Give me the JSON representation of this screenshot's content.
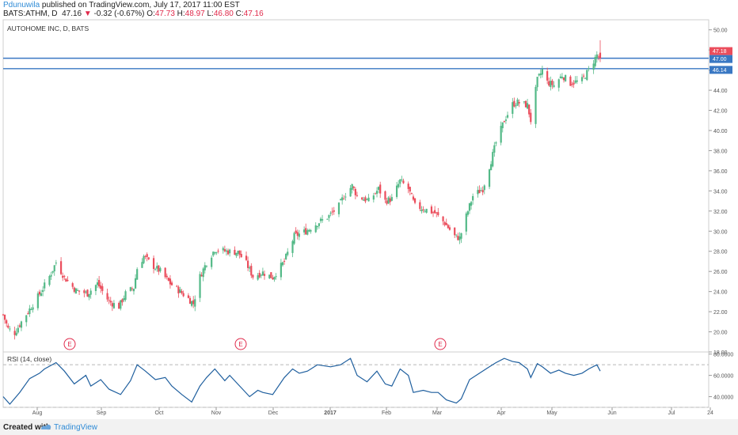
{
  "header": {
    "author": "Pdunuwila",
    "published": " published on TradingView.com, July 17, 2017 11:00 EST",
    "symbol": "BATS:ATHM, D",
    "last": "47.16",
    "arrow": "▼",
    "change": "-0.32 (-0.67%)",
    "o_label": "O:",
    "o_val": "47.73",
    "h_label": "H:",
    "h_val": "48.97",
    "l_label": "L:",
    "l_val": "46.80",
    "c_label": "C:",
    "c_val": "47.16"
  },
  "footer": {
    "created_with": "Created with",
    "brand": "TradingView"
  },
  "colors": {
    "up": "#53b987",
    "down": "#eb4d5c",
    "rsi_line": "#1f5f9e",
    "hline": "#3a78c3",
    "event": "#e0294a"
  },
  "chart_data": [
    {
      "type": "candlestick",
      "title": "AUTOHOME INC, D, BATS",
      "ylim": [
        18,
        51
      ],
      "y_ticks": [
        "18.00",
        "20.00",
        "22.00",
        "24.00",
        "26.00",
        "28.00",
        "30.00",
        "32.00",
        "34.00",
        "36.00",
        "38.00",
        "40.00",
        "42.00",
        "44.00",
        "46.00",
        "48.00",
        "50.00"
      ],
      "x_ticks": [
        "Aug",
        "Sep",
        "Oct",
        "Nov",
        "Dec",
        "2017",
        "Feb",
        "Mar",
        "Apr",
        "May",
        "Jun",
        "Jul",
        "24"
      ],
      "horizontal_lines": [
        47.18,
        46.14
      ],
      "price_labels": [
        {
          "text": "47.18",
          "value": 47.18,
          "color": "#eb4d5c"
        },
        {
          "text": "47.00",
          "value": 47.0,
          "color": "#3a78c3"
        },
        {
          "text": "46.14",
          "value": 46.14,
          "color": "#3a78c3"
        }
      ],
      "event_markers": [
        {
          "label": "E",
          "date": "Aug"
        },
        {
          "label": "E",
          "date": "Nov"
        },
        {
          "label": "E",
          "date": "Mar"
        }
      ],
      "anchor_closes": [
        [
          "2016-07-18",
          21.7
        ],
        [
          "2016-07-21",
          20.3
        ],
        [
          "2016-07-25",
          19.9
        ],
        [
          "2016-07-29",
          21.0
        ],
        [
          "2016-08-04",
          22.5
        ],
        [
          "2016-08-10",
          24.0
        ],
        [
          "2016-08-15",
          25.5
        ],
        [
          "2016-08-19",
          26.9
        ],
        [
          "2016-08-24",
          25.4
        ],
        [
          "2016-08-31",
          24.1
        ],
        [
          "2016-09-07",
          23.8
        ],
        [
          "2016-09-13",
          24.8
        ],
        [
          "2016-09-20",
          23.0
        ],
        [
          "2016-09-26",
          22.5
        ],
        [
          "2016-09-30",
          23.8
        ],
        [
          "2016-10-05",
          24.4
        ],
        [
          "2016-10-07",
          26.3
        ],
        [
          "2016-10-11",
          27.5
        ],
        [
          "2016-10-17",
          26.5
        ],
        [
          "2016-10-21",
          26.0
        ],
        [
          "2016-10-27",
          24.8
        ],
        [
          "2016-11-02",
          24.0
        ],
        [
          "2016-11-07",
          23.3
        ],
        [
          "2016-11-10",
          22.8
        ],
        [
          "2016-11-14",
          25.5
        ],
        [
          "2016-11-18",
          26.9
        ],
        [
          "2016-11-23",
          28.2
        ],
        [
          "2016-11-30",
          28.0
        ],
        [
          "2016-12-07",
          27.9
        ],
        [
          "2016-12-12",
          26.8
        ],
        [
          "2016-12-16",
          25.5
        ],
        [
          "2016-12-22",
          25.9
        ],
        [
          "2016-12-28",
          25.4
        ],
        [
          "2017-01-04",
          27.0
        ],
        [
          "2017-01-10",
          29.5
        ],
        [
          "2017-01-17",
          30.0
        ],
        [
          "2017-01-24",
          30.8
        ],
        [
          "2017-01-31",
          31.5
        ],
        [
          "2017-02-06",
          32.5
        ],
        [
          "2017-02-09",
          33.5
        ],
        [
          "2017-02-14",
          34.5
        ],
        [
          "2017-02-17",
          33.5
        ],
        [
          "2017-02-24",
          33.0
        ],
        [
          "2017-03-02",
          34.2
        ],
        [
          "2017-03-06",
          33.0
        ],
        [
          "2017-03-10",
          33.2
        ],
        [
          "2017-03-15",
          35.0
        ],
        [
          "2017-03-20",
          34.2
        ],
        [
          "2017-03-24",
          32.5
        ],
        [
          "2017-03-30",
          32.2
        ],
        [
          "2017-04-05",
          31.8
        ],
        [
          "2017-04-11",
          30.8
        ],
        [
          "2017-04-17",
          29.5
        ],
        [
          "2017-04-20",
          29.3
        ],
        [
          "2017-04-24",
          31.5
        ],
        [
          "2017-04-28",
          33.5
        ],
        [
          "2017-05-04",
          34.2
        ],
        [
          "2017-05-09",
          37.0
        ],
        [
          "2017-05-12",
          38.8
        ],
        [
          "2017-05-17",
          41.0
        ],
        [
          "2017-05-22",
          42.6
        ],
        [
          "2017-05-25",
          42.8
        ],
        [
          "2017-05-31",
          42.5
        ],
        [
          "2017-06-02",
          41.0
        ],
        [
          "2017-06-06",
          45.0
        ],
        [
          "2017-06-09",
          46.0
        ],
        [
          "2017-06-12",
          44.8
        ],
        [
          "2017-06-16",
          44.5
        ],
        [
          "2017-06-21",
          45.5
        ],
        [
          "2017-06-26",
          44.7
        ],
        [
          "2017-07-03",
          45.0
        ],
        [
          "2017-07-07",
          46.0
        ],
        [
          "2017-07-12",
          47.5
        ],
        [
          "2017-07-14",
          47.16
        ]
      ]
    },
    {
      "type": "line",
      "title": "RSI (14, close)",
      "ylim": [
        30,
        82
      ],
      "y_ticks": [
        "40.0000",
        "60.0000",
        "80.0000"
      ],
      "guides": [
        70,
        30
      ],
      "series": [
        {
          "values": [
            [
              "2016-07-18",
              40
            ],
            [
              "2016-07-22",
              33
            ],
            [
              "2016-07-28",
              44
            ],
            [
              "2016-08-03",
              57
            ],
            [
              "2016-08-09",
              62
            ],
            [
              "2016-08-12",
              66
            ],
            [
              "2016-08-19",
              72
            ],
            [
              "2016-08-24",
              64
            ],
            [
              "2016-08-30",
              52
            ],
            [
              "2016-09-06",
              60
            ],
            [
              "2016-09-09",
              50
            ],
            [
              "2016-09-15",
              56
            ],
            [
              "2016-09-20",
              47
            ],
            [
              "2016-09-27",
              42
            ],
            [
              "2016-10-03",
              55
            ],
            [
              "2016-10-07",
              70
            ],
            [
              "2016-10-12",
              64
            ],
            [
              "2016-10-18",
              56
            ],
            [
              "2016-10-24",
              58
            ],
            [
              "2016-10-28",
              50
            ],
            [
              "2016-11-03",
              42
            ],
            [
              "2016-11-09",
              35
            ],
            [
              "2016-11-14",
              50
            ],
            [
              "2016-11-18",
              58
            ],
            [
              "2016-11-23",
              66
            ],
            [
              "2016-11-29",
              55
            ],
            [
              "2016-12-02",
              60
            ],
            [
              "2016-12-08",
              50
            ],
            [
              "2016-12-14",
              40
            ],
            [
              "2016-12-19",
              46
            ],
            [
              "2016-12-22",
              44
            ],
            [
              "2016-12-28",
              42
            ],
            [
              "2017-01-04",
              58
            ],
            [
              "2017-01-09",
              66
            ],
            [
              "2017-01-13",
              62
            ],
            [
              "2017-01-18",
              64
            ],
            [
              "2017-01-24",
              70
            ],
            [
              "2017-02-01",
              68
            ],
            [
              "2017-02-07",
              70
            ],
            [
              "2017-02-13",
              76
            ],
            [
              "2017-02-17",
              60
            ],
            [
              "2017-02-23",
              54
            ],
            [
              "2017-03-01",
              64
            ],
            [
              "2017-03-06",
              52
            ],
            [
              "2017-03-10",
              50
            ],
            [
              "2017-03-15",
              66
            ],
            [
              "2017-03-20",
              60
            ],
            [
              "2017-03-23",
              44
            ],
            [
              "2017-03-29",
              46
            ],
            [
              "2017-04-03",
              44
            ],
            [
              "2017-04-07",
              44
            ],
            [
              "2017-04-12",
              37
            ],
            [
              "2017-04-18",
              34
            ],
            [
              "2017-04-21",
              38
            ],
            [
              "2017-04-26",
              56
            ],
            [
              "2017-05-02",
              62
            ],
            [
              "2017-05-08",
              68
            ],
            [
              "2017-05-12",
              72
            ],
            [
              "2017-05-17",
              76
            ],
            [
              "2017-05-22",
              73
            ],
            [
              "2017-05-26",
              72
            ],
            [
              "2017-05-31",
              66
            ],
            [
              "2017-06-02",
              58
            ],
            [
              "2017-06-06",
              71
            ],
            [
              "2017-06-09",
              68
            ],
            [
              "2017-06-14",
              62
            ],
            [
              "2017-06-19",
              65
            ],
            [
              "2017-06-23",
              62
            ],
            [
              "2017-06-28",
              60
            ],
            [
              "2017-07-03",
              62
            ],
            [
              "2017-07-07",
              66
            ],
            [
              "2017-07-12",
              70
            ],
            [
              "2017-07-14",
              64
            ]
          ]
        }
      ]
    }
  ]
}
